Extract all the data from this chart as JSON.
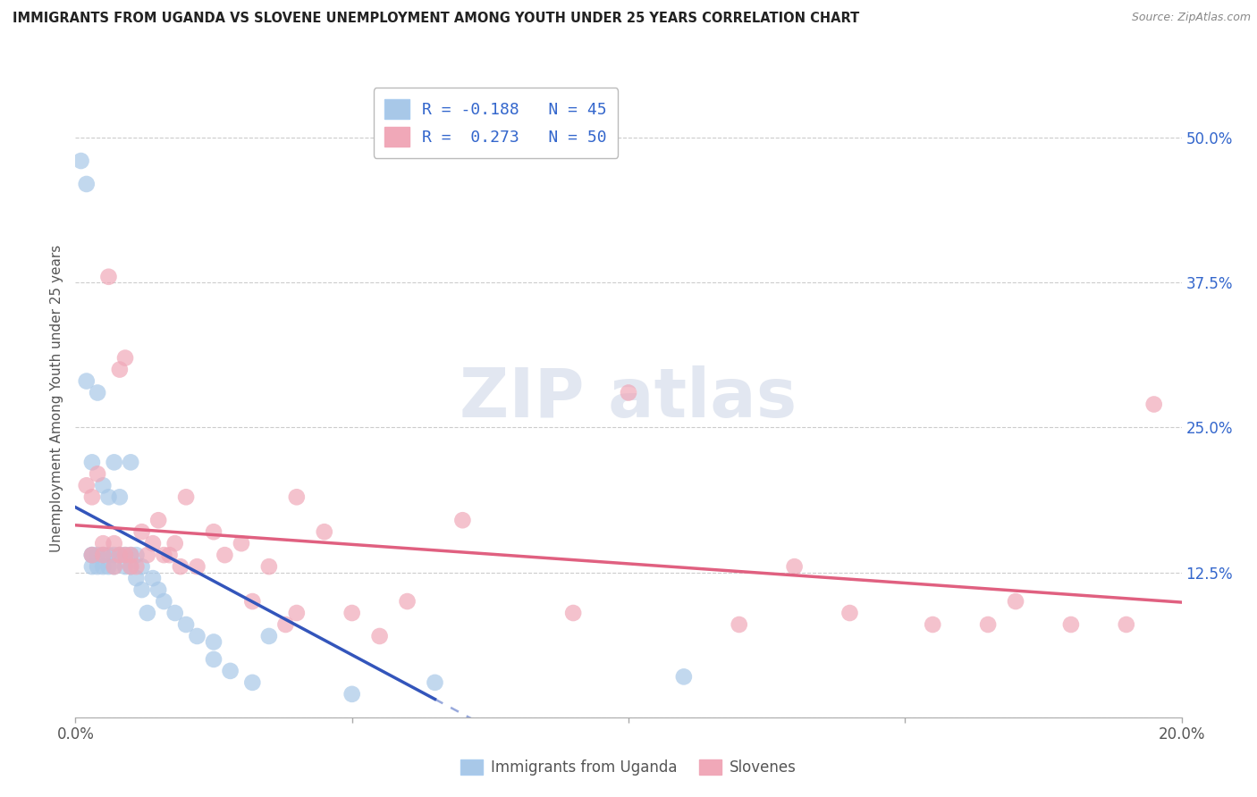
{
  "title": "IMMIGRANTS FROM UGANDA VS SLOVENE UNEMPLOYMENT AMONG YOUTH UNDER 25 YEARS CORRELATION CHART",
  "source": "Source: ZipAtlas.com",
  "xlabel_bottom": "Immigrants from Uganda",
  "xlabel_bottom2": "Slovenes",
  "ylabel": "Unemployment Among Youth under 25 years",
  "xlim": [
    0.0,
    0.2
  ],
  "ylim": [
    0.0,
    0.55
  ],
  "R1": -0.188,
  "N1": 45,
  "R2": 0.273,
  "N2": 50,
  "color_uganda": "#a8c8e8",
  "color_slovene": "#f0a8b8",
  "line_color_uganda": "#3355bb",
  "line_color_slovene": "#e06080",
  "legend_text_color": "#3366cc",
  "uganda_x": [
    0.001,
    0.002,
    0.002,
    0.003,
    0.003,
    0.003,
    0.003,
    0.004,
    0.004,
    0.004,
    0.005,
    0.005,
    0.005,
    0.006,
    0.006,
    0.006,
    0.007,
    0.007,
    0.007,
    0.008,
    0.008,
    0.009,
    0.009,
    0.01,
    0.01,
    0.01,
    0.011,
    0.011,
    0.012,
    0.012,
    0.013,
    0.014,
    0.015,
    0.016,
    0.018,
    0.02,
    0.022,
    0.025,
    0.025,
    0.028,
    0.032,
    0.035,
    0.05,
    0.065,
    0.11
  ],
  "uganda_y": [
    0.48,
    0.46,
    0.29,
    0.14,
    0.14,
    0.13,
    0.22,
    0.14,
    0.13,
    0.28,
    0.14,
    0.2,
    0.13,
    0.14,
    0.13,
    0.19,
    0.14,
    0.22,
    0.13,
    0.14,
    0.19,
    0.14,
    0.13,
    0.14,
    0.13,
    0.22,
    0.14,
    0.12,
    0.13,
    0.11,
    0.09,
    0.12,
    0.11,
    0.1,
    0.09,
    0.08,
    0.07,
    0.065,
    0.05,
    0.04,
    0.03,
    0.07,
    0.02,
    0.03,
    0.035
  ],
  "slovene_x": [
    0.002,
    0.003,
    0.003,
    0.004,
    0.005,
    0.005,
    0.006,
    0.007,
    0.007,
    0.008,
    0.008,
    0.009,
    0.009,
    0.01,
    0.01,
    0.011,
    0.012,
    0.013,
    0.014,
    0.015,
    0.016,
    0.017,
    0.018,
    0.019,
    0.02,
    0.022,
    0.025,
    0.027,
    0.03,
    0.032,
    0.035,
    0.038,
    0.04,
    0.04,
    0.045,
    0.05,
    0.055,
    0.06,
    0.07,
    0.09,
    0.1,
    0.12,
    0.13,
    0.14,
    0.155,
    0.165,
    0.17,
    0.18,
    0.19,
    0.195
  ],
  "slovene_y": [
    0.2,
    0.14,
    0.19,
    0.21,
    0.14,
    0.15,
    0.38,
    0.13,
    0.15,
    0.14,
    0.3,
    0.14,
    0.31,
    0.13,
    0.14,
    0.13,
    0.16,
    0.14,
    0.15,
    0.17,
    0.14,
    0.14,
    0.15,
    0.13,
    0.19,
    0.13,
    0.16,
    0.14,
    0.15,
    0.1,
    0.13,
    0.08,
    0.09,
    0.19,
    0.16,
    0.09,
    0.07,
    0.1,
    0.17,
    0.09,
    0.28,
    0.08,
    0.13,
    0.09,
    0.08,
    0.08,
    0.1,
    0.08,
    0.08,
    0.27
  ],
  "background_color": "#ffffff"
}
